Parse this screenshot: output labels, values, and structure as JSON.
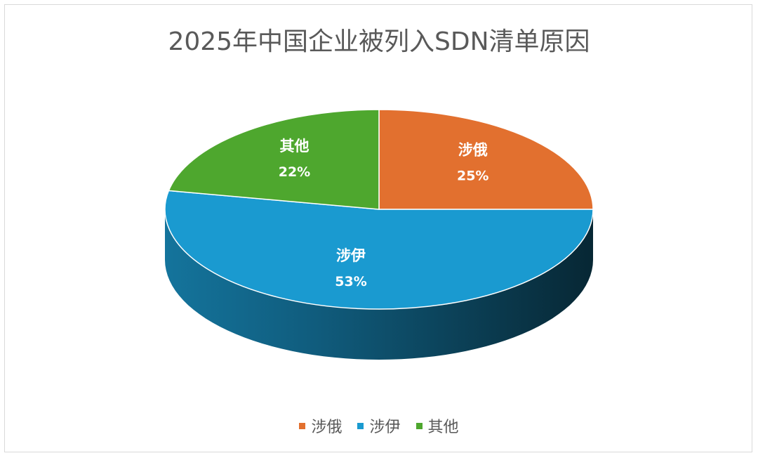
{
  "chart_data": {
    "type": "pie",
    "title": "2025年中国企业被列入SDN清单原因",
    "categories": [
      "涉俄",
      "涉伊",
      "其他"
    ],
    "values": [
      25,
      53,
      22
    ],
    "labels": [
      "25%",
      "53%",
      "22%"
    ],
    "colors": [
      "#E2702F",
      "#1A9AD0",
      "#4EA72E"
    ],
    "style": "3d",
    "legend": "bottom"
  }
}
